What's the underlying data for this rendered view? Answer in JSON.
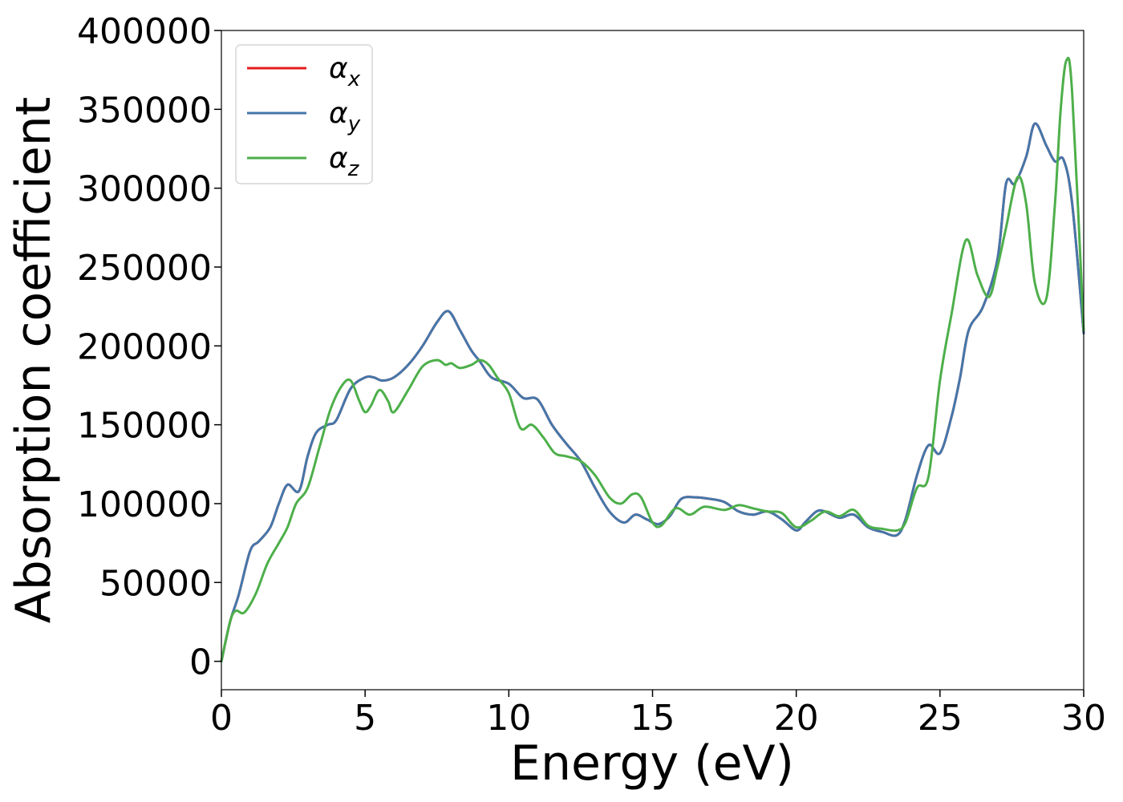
{
  "chart_data": {
    "type": "line",
    "xlabel": "Energy (eV)",
    "ylabel": "Absorption coefficient",
    "xlim": [
      0,
      30
    ],
    "ylim": [
      -18000,
      400000
    ],
    "x_ticks": [
      "0",
      "5",
      "10",
      "15",
      "20",
      "25",
      "30"
    ],
    "y_ticks": [
      "0",
      "50000",
      "100000",
      "150000",
      "200000",
      "250000",
      "300000",
      "350000",
      "400000"
    ],
    "grid": false,
    "legend_position": "top-left",
    "series": [
      {
        "name": "αx",
        "legend_main": "α",
        "legend_sub": "x",
        "color": "#e41a1c",
        "x": [
          0,
          0.3,
          0.6,
          1.0,
          1.3,
          1.7,
          2.0,
          2.3,
          2.7,
          3.0,
          3.3,
          3.7,
          4.0,
          4.5,
          5.0,
          5.3,
          5.6,
          6.0,
          6.5,
          7.0,
          7.5,
          7.9,
          8.3,
          8.7,
          9.0,
          9.4,
          10.0,
          10.5,
          11.0,
          11.5,
          12.0,
          12.5,
          13.0,
          13.5,
          14.0,
          14.4,
          14.8,
          15.2,
          15.6,
          16.0,
          16.5,
          17.0,
          17.5,
          18.0,
          18.5,
          19.0,
          19.5,
          20.0,
          20.3,
          20.7,
          21.0,
          21.5,
          22.0,
          22.5,
          23.0,
          23.5,
          23.8,
          24.2,
          24.6,
          25.0,
          25.4,
          25.7,
          26.0,
          26.5,
          27.0,
          27.3,
          27.6,
          28.0,
          28.3,
          28.7,
          29.0,
          29.3,
          29.6,
          30.0
        ],
        "y": [
          0,
          25000,
          42000,
          70000,
          76000,
          85000,
          100000,
          112000,
          108000,
          130000,
          145000,
          150000,
          153000,
          173000,
          180000,
          180000,
          178000,
          180000,
          188000,
          200000,
          215000,
          222000,
          210000,
          197000,
          190000,
          180000,
          176000,
          167000,
          166000,
          150000,
          138000,
          127000,
          110000,
          95000,
          88000,
          93000,
          90000,
          87000,
          92000,
          103000,
          104000,
          103000,
          101000,
          95000,
          93000,
          95000,
          90000,
          83000,
          88000,
          95000,
          95000,
          91000,
          93000,
          85000,
          82000,
          80000,
          90000,
          118000,
          137000,
          132000,
          155000,
          180000,
          210000,
          225000,
          255000,
          303000,
          303000,
          320000,
          341000,
          327000,
          317000,
          318000,
          290000,
          208000
        ]
      },
      {
        "name": "αy",
        "legend_main": "α",
        "legend_sub": "y",
        "color": "#4477aa",
        "x": [
          0,
          0.3,
          0.6,
          1.0,
          1.3,
          1.7,
          2.0,
          2.3,
          2.7,
          3.0,
          3.3,
          3.7,
          4.0,
          4.5,
          5.0,
          5.3,
          5.6,
          6.0,
          6.5,
          7.0,
          7.5,
          7.9,
          8.3,
          8.7,
          9.0,
          9.4,
          10.0,
          10.5,
          11.0,
          11.5,
          12.0,
          12.5,
          13.0,
          13.5,
          14.0,
          14.4,
          14.8,
          15.2,
          15.6,
          16.0,
          16.5,
          17.0,
          17.5,
          18.0,
          18.5,
          19.0,
          19.5,
          20.0,
          20.3,
          20.7,
          21.0,
          21.5,
          22.0,
          22.5,
          23.0,
          23.5,
          23.8,
          24.2,
          24.6,
          25.0,
          25.4,
          25.7,
          26.0,
          26.5,
          27.0,
          27.3,
          27.6,
          28.0,
          28.3,
          28.7,
          29.0,
          29.3,
          29.6,
          30.0
        ],
        "y": [
          0,
          25000,
          42000,
          70000,
          76000,
          85000,
          100000,
          112000,
          108000,
          130000,
          145000,
          150000,
          153000,
          173000,
          180000,
          180000,
          178000,
          180000,
          188000,
          200000,
          215000,
          222000,
          210000,
          197000,
          190000,
          180000,
          176000,
          167000,
          166000,
          150000,
          138000,
          127000,
          110000,
          95000,
          88000,
          93000,
          90000,
          87000,
          92000,
          103000,
          104000,
          103000,
          101000,
          95000,
          93000,
          95000,
          90000,
          83000,
          88000,
          95000,
          95000,
          91000,
          93000,
          85000,
          82000,
          80000,
          90000,
          118000,
          137000,
          132000,
          155000,
          180000,
          210000,
          225000,
          255000,
          303000,
          303000,
          320000,
          341000,
          327000,
          317000,
          318000,
          290000,
          208000
        ]
      },
      {
        "name": "αz",
        "legend_main": "α",
        "legend_sub": "z",
        "color": "#4daf4a",
        "x": [
          0,
          0.3,
          0.5,
          0.8,
          1.2,
          1.6,
          2.0,
          2.3,
          2.6,
          3.0,
          3.4,
          3.8,
          4.2,
          4.5,
          4.8,
          5.0,
          5.2,
          5.5,
          5.8,
          6.0,
          6.5,
          7.0,
          7.5,
          7.8,
          8.0,
          8.3,
          8.7,
          9.0,
          9.3,
          9.6,
          10.0,
          10.4,
          10.8,
          11.2,
          11.6,
          12.0,
          12.5,
          13.0,
          13.5,
          13.9,
          14.3,
          14.6,
          15.0,
          15.3,
          15.8,
          16.3,
          16.8,
          17.5,
          18.0,
          18.5,
          19.0,
          19.5,
          20.0,
          20.5,
          21.0,
          21.5,
          22.0,
          22.5,
          23.0,
          23.5,
          23.8,
          24.2,
          24.6,
          25.0,
          25.4,
          25.9,
          26.3,
          26.7,
          27.0,
          27.3,
          27.7,
          28.0,
          28.3,
          28.7,
          29.0,
          29.2,
          29.4,
          29.6,
          30.0
        ],
        "y": [
          0,
          25000,
          32000,
          31000,
          43000,
          62000,
          75000,
          85000,
          100000,
          110000,
          135000,
          160000,
          175000,
          178000,
          165000,
          158000,
          162000,
          172000,
          165000,
          158000,
          172000,
          187000,
          191000,
          188000,
          189000,
          186000,
          188000,
          191000,
          188000,
          180000,
          170000,
          148000,
          150000,
          142000,
          132000,
          130000,
          127000,
          118000,
          104000,
          100000,
          106000,
          104000,
          88000,
          86000,
          97000,
          93000,
          98000,
          96000,
          99000,
          97000,
          95000,
          94000,
          85000,
          89000,
          95000,
          92000,
          96000,
          86000,
          84000,
          83000,
          88000,
          110000,
          117000,
          178000,
          220000,
          267000,
          245000,
          231000,
          250000,
          275000,
          307000,
          290000,
          240000,
          230000,
          290000,
          350000,
          381000,
          360000,
          210000
        ]
      }
    ]
  }
}
